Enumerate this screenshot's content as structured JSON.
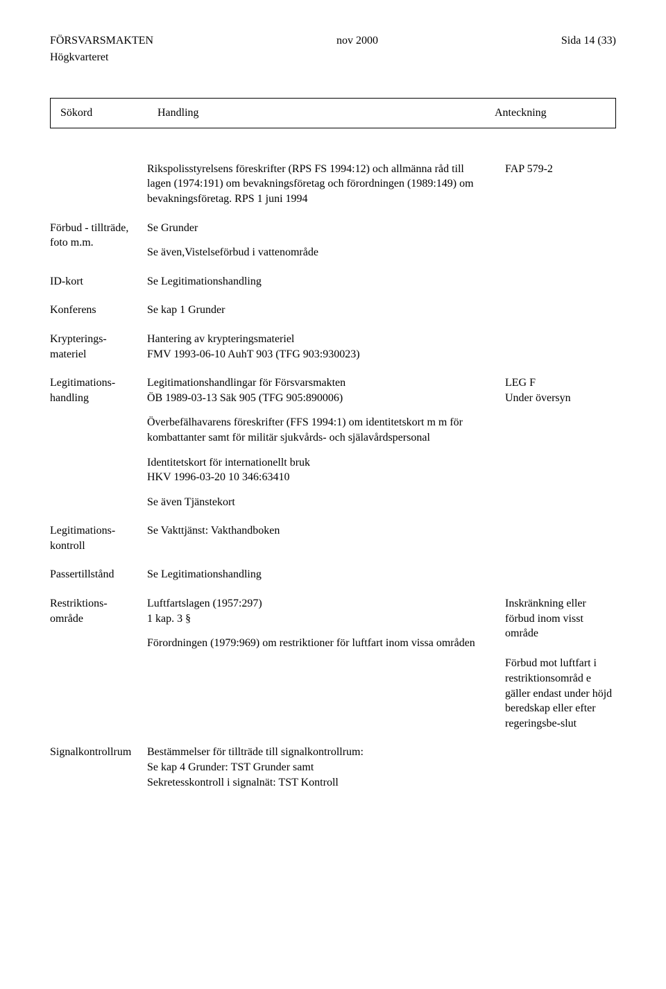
{
  "header": {
    "org": "FÖRSVARSMAKTEN",
    "sub_org": "Högkvarteret",
    "date": "nov 2000",
    "page": "Sida 14 (33)"
  },
  "table_head": {
    "col1": "Sökord",
    "col2": "Handling",
    "col3": "Anteckning"
  },
  "rows": [
    {
      "key": "",
      "body": [
        "Rikspolisstyrelsens föreskrifter (RPS FS 1994:12) och allmänna råd till lagen (1974:191) om bevakningsföretag och förordningen (1989:149) om bevakningsföretag. RPS 1 juni 1994"
      ],
      "note": "FAP 579-2"
    },
    {
      "key": "Förbud - tillträde, foto m.m.",
      "body": [
        "Se Grunder",
        "Se även,Vistelseförbud i vattenområde"
      ],
      "note": ""
    },
    {
      "key": "ID-kort",
      "body": [
        "Se Legitimationshandling"
      ],
      "note": ""
    },
    {
      "key": "Konferens",
      "body": [
        "Se kap 1 Grunder"
      ],
      "note": ""
    },
    {
      "key": "Krypterings-materiel",
      "body": [
        "Hantering av krypteringsmateriel\nFMV 1993-06-10  AuhT 903 (TFG 903:930023)"
      ],
      "note": ""
    },
    {
      "key": "Legitimations-handling",
      "body": [
        "Legitimationshandlingar för Försvarsmakten\nÖB 1989-03-13  Säk 905 (TFG 905:890006)",
        "Överbefälhavarens föreskrifter (FFS 1994:1) om identitetskort m m för kombattanter samt för militär sjukvårds- och själavårdspersonal",
        "Identitetskort för internationellt bruk\nHKV 1996-03-20  10 346:63410",
        "Se även Tjänstekort"
      ],
      "note": "LEG F\nUnder översyn"
    },
    {
      "key": "Legitimations-kontroll",
      "body": [
        "Se Vakttjänst: Vakthandboken"
      ],
      "note": ""
    },
    {
      "key": "Passertillstånd",
      "body": [
        "Se Legitimationshandling"
      ],
      "note": ""
    },
    {
      "key": "Restriktions-område",
      "body": [
        "Luftfartslagen (1957:297)\n1 kap. 3 §",
        "Förordningen (1979:969) om restriktioner för luftfart inom vissa områden"
      ],
      "note": "Inskränkning eller förbud inom visst område\n\nFörbud mot luftfart i restriktionsområd e gäller endast under höjd beredskap eller efter regeringsbe-slut"
    },
    {
      "key": "Signalkontrollrum",
      "body": [
        "Bestämmelser för tillträde till signalkontrollrum:\nSe kap 4        Grunder: TST Grunder samt\n                     Sekretesskontroll i signalnät: TST Kontroll"
      ],
      "note": ""
    }
  ]
}
